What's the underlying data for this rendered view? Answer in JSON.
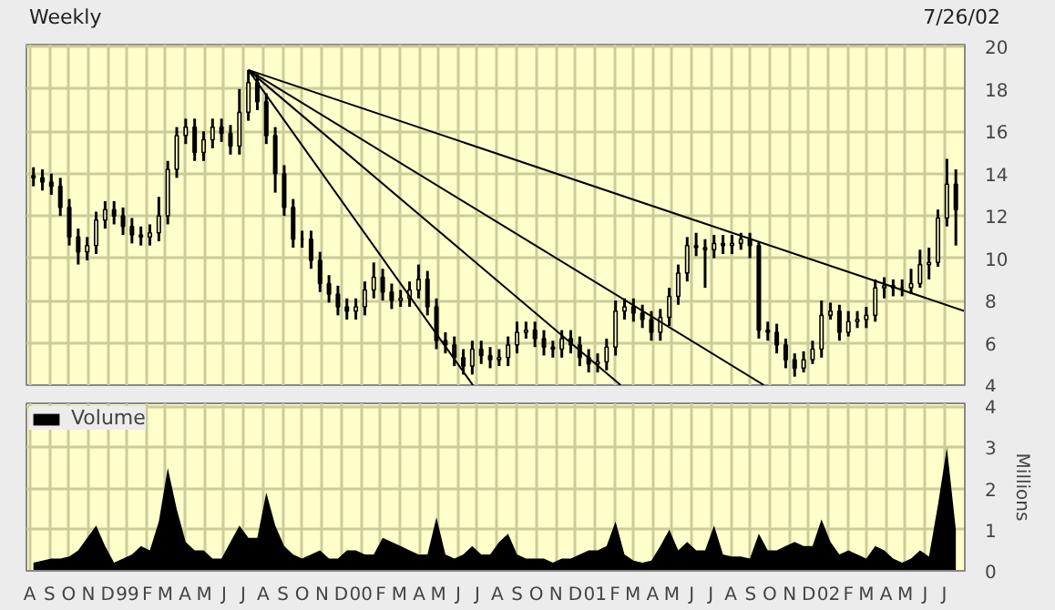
{
  "chart_data": [
    {
      "type": "candlestick",
      "title": "Weekly",
      "annotations": [
        "7/26/02"
      ],
      "xlim": [
        "1998-07-27",
        "2002-08-02"
      ],
      "ylim": [
        4,
        20.1
      ],
      "yticks": [
        4,
        6,
        8,
        10,
        12,
        14,
        16,
        18,
        20
      ],
      "tick_labels": "y",
      "grid": true,
      "xticks": [
        {
          "value": "1998-08-01",
          "label": null
        },
        {
          "value": "1998-09-01",
          "label": null
        },
        {
          "value": "1998-10-01",
          "label": null
        },
        {
          "value": "1998-11-01",
          "label": null
        },
        {
          "value": "1998-12-01",
          "label": null
        },
        {
          "value": "1999-01-01",
          "label": null
        },
        {
          "value": "1999-02-01",
          "label": null
        },
        {
          "value": "1999-03-01",
          "label": null
        },
        {
          "value": "1999-04-01",
          "label": null
        },
        {
          "value": "1999-05-01",
          "label": null
        },
        {
          "value": "1999-06-01",
          "label": null
        },
        {
          "value": "1999-07-01",
          "label": null
        },
        {
          "value": "1999-08-01",
          "label": null
        },
        {
          "value": "1999-09-01",
          "label": null
        },
        {
          "value": "1999-10-01",
          "label": null
        },
        {
          "value": "1999-11-01",
          "label": null
        },
        {
          "value": "1999-12-01",
          "label": null
        },
        {
          "value": "2000-01-01",
          "label": null
        },
        {
          "value": "2000-02-01",
          "label": null
        },
        {
          "value": "2000-03-01",
          "label": null
        },
        {
          "value": "2000-04-01",
          "label": null
        },
        {
          "value": "2000-05-01",
          "label": null
        },
        {
          "value": "2000-06-01",
          "label": null
        },
        {
          "value": "2000-07-01",
          "label": null
        },
        {
          "value": "2000-08-01",
          "label": null
        },
        {
          "value": "2000-09-01",
          "label": null
        },
        {
          "value": "2000-10-01",
          "label": null
        },
        {
          "value": "2000-11-01",
          "label": null
        },
        {
          "value": "2000-12-01",
          "label": null
        },
        {
          "value": "2001-01-01",
          "label": null
        },
        {
          "value": "2001-02-01",
          "label": null
        },
        {
          "value": "2001-03-01",
          "label": null
        },
        {
          "value": "2001-04-01",
          "label": null
        },
        {
          "value": "2001-05-01",
          "label": null
        },
        {
          "value": "2001-06-01",
          "label": null
        },
        {
          "value": "2001-07-01",
          "label": null
        },
        {
          "value": "2001-08-01",
          "label": null
        },
        {
          "value": "2001-09-01",
          "label": null
        },
        {
          "value": "2001-10-01",
          "label": null
        },
        {
          "value": "2001-11-01",
          "label": null
        },
        {
          "value": "2001-12-01",
          "label": null
        },
        {
          "value": "2002-01-01",
          "label": null
        },
        {
          "value": "2002-02-01",
          "label": null
        },
        {
          "value": "2002-03-01",
          "label": null
        },
        {
          "value": "2002-04-01",
          "label": null
        },
        {
          "value": "2002-05-01",
          "label": null
        },
        {
          "value": "2002-06-01",
          "label": null
        },
        {
          "value": "2002-07-01",
          "label": null
        }
      ],
      "x": [
        "1998-08-07",
        "1998-08-21",
        "1998-09-04",
        "1998-09-18",
        "1998-10-02",
        "1998-10-16",
        "1998-10-30",
        "1998-11-13",
        "1998-11-27",
        "1998-12-11",
        "1998-12-25",
        "1999-01-08",
        "1999-01-22",
        "1999-02-05",
        "1999-02-19",
        "1999-03-05",
        "1999-03-19",
        "1999-04-02",
        "1999-04-16",
        "1999-04-30",
        "1999-05-14",
        "1999-05-28",
        "1999-06-11",
        "1999-06-25",
        "1999-07-09",
        "1999-07-23",
        "1999-08-06",
        "1999-08-20",
        "1999-09-03",
        "1999-09-17",
        "1999-10-01",
        "1999-10-15",
        "1999-10-29",
        "1999-11-12",
        "1999-11-26",
        "1999-12-10",
        "1999-12-24",
        "2000-01-07",
        "2000-01-21",
        "2000-02-04",
        "2000-02-18",
        "2000-03-03",
        "2000-03-17",
        "2000-03-31",
        "2000-04-14",
        "2000-04-28",
        "2000-05-12",
        "2000-05-26",
        "2000-06-09",
        "2000-06-23",
        "2000-07-07",
        "2000-07-21",
        "2000-08-04",
        "2000-08-18",
        "2000-09-01",
        "2000-09-15",
        "2000-09-29",
        "2000-10-13",
        "2000-10-27",
        "2000-11-10",
        "2000-11-24",
        "2000-12-08",
        "2000-12-22",
        "2001-01-05",
        "2001-01-19",
        "2001-02-02",
        "2001-02-16",
        "2001-03-02",
        "2001-03-16",
        "2001-03-30",
        "2001-04-13",
        "2001-04-27",
        "2001-05-11",
        "2001-05-25",
        "2001-06-08",
        "2001-06-22",
        "2001-07-06",
        "2001-07-20",
        "2001-08-03",
        "2001-08-17",
        "2001-08-31",
        "2001-09-14",
        "2001-09-28",
        "2001-10-12",
        "2001-10-26",
        "2001-11-09",
        "2001-11-23",
        "2001-12-07",
        "2001-12-21",
        "2002-01-04",
        "2002-01-18",
        "2002-02-01",
        "2002-02-15",
        "2002-03-01",
        "2002-03-15",
        "2002-03-29",
        "2002-04-12",
        "2002-04-26",
        "2002-05-10",
        "2002-05-24",
        "2002-06-07",
        "2002-06-21",
        "2002-07-05",
        "2002-07-19"
      ],
      "color": "#000000",
      "ohlc": [
        [
          13.9,
          14.3,
          13.4,
          13.8
        ],
        [
          13.8,
          14.2,
          13.2,
          13.6
        ],
        [
          13.6,
          14.0,
          13.0,
          13.4
        ],
        [
          13.4,
          13.8,
          12.0,
          12.4
        ],
        [
          12.4,
          12.8,
          10.6,
          11.0
        ],
        [
          11.0,
          11.4,
          9.7,
          10.3
        ],
        [
          10.3,
          11.0,
          9.9,
          10.6
        ],
        [
          10.6,
          12.2,
          10.2,
          11.8
        ],
        [
          11.8,
          12.7,
          11.4,
          12.3
        ],
        [
          12.3,
          12.7,
          11.6,
          12.0
        ],
        [
          12.0,
          12.4,
          11.1,
          11.5
        ],
        [
          11.5,
          11.9,
          10.7,
          11.1
        ],
        [
          11.1,
          11.5,
          10.6,
          11.0
        ],
        [
          11.0,
          11.6,
          10.6,
          11.2
        ],
        [
          11.2,
          12.9,
          10.8,
          12.0
        ],
        [
          12.0,
          14.6,
          11.6,
          14.2
        ],
        [
          14.2,
          16.2,
          13.8,
          15.8
        ],
        [
          15.8,
          16.6,
          15.4,
          16.2
        ],
        [
          16.2,
          16.6,
          14.6,
          15.0
        ],
        [
          15.0,
          16.0,
          14.6,
          15.6
        ],
        [
          15.6,
          16.6,
          15.2,
          16.2
        ],
        [
          16.2,
          16.6,
          15.5,
          15.9
        ],
        [
          15.9,
          16.3,
          14.9,
          15.3
        ],
        [
          15.3,
          18.0,
          14.9,
          16.9
        ],
        [
          16.9,
          18.9,
          16.5,
          18.3
        ],
        [
          18.3,
          18.7,
          17.0,
          17.4
        ],
        [
          17.4,
          17.8,
          15.4,
          15.8
        ],
        [
          15.8,
          16.2,
          13.1,
          14.0
        ],
        [
          14.0,
          14.4,
          12.0,
          12.4
        ],
        [
          12.4,
          12.8,
          10.5,
          10.9
        ],
        [
          10.9,
          11.3,
          10.5,
          10.9
        ],
        [
          10.9,
          11.3,
          9.5,
          9.9
        ],
        [
          9.9,
          10.3,
          8.4,
          8.8
        ],
        [
          8.8,
          9.2,
          7.9,
          8.3
        ],
        [
          8.3,
          8.7,
          7.3,
          7.7
        ],
        [
          7.7,
          8.1,
          7.1,
          7.5
        ],
        [
          7.5,
          8.1,
          7.1,
          7.7
        ],
        [
          7.7,
          8.9,
          7.3,
          8.5
        ],
        [
          8.5,
          9.8,
          8.1,
          9.1
        ],
        [
          9.1,
          9.5,
          8.0,
          8.4
        ],
        [
          8.4,
          8.8,
          7.6,
          8.0
        ],
        [
          8.0,
          8.5,
          7.7,
          8.1
        ],
        [
          8.1,
          8.9,
          7.7,
          8.5
        ],
        [
          8.5,
          9.7,
          8.1,
          9.0
        ],
        [
          9.0,
          9.4,
          7.3,
          7.7
        ],
        [
          7.7,
          8.1,
          5.7,
          6.1
        ],
        [
          6.1,
          6.5,
          5.5,
          5.9
        ],
        [
          5.9,
          6.3,
          4.9,
          5.3
        ],
        [
          5.3,
          5.7,
          4.5,
          4.9
        ],
        [
          4.9,
          6.1,
          4.5,
          5.7
        ],
        [
          5.7,
          6.1,
          5.0,
          5.4
        ],
        [
          5.4,
          5.8,
          4.8,
          5.2
        ],
        [
          5.2,
          5.7,
          4.9,
          5.3
        ],
        [
          5.3,
          6.3,
          4.9,
          5.9
        ],
        [
          5.9,
          7.0,
          5.5,
          6.5
        ],
        [
          6.5,
          7.0,
          6.2,
          6.6
        ],
        [
          6.6,
          7.0,
          5.8,
          6.2
        ],
        [
          6.2,
          6.6,
          5.4,
          5.8
        ],
        [
          5.8,
          6.1,
          5.3,
          5.7
        ],
        [
          5.7,
          6.6,
          5.3,
          6.2
        ],
        [
          6.2,
          6.6,
          5.5,
          5.9
        ],
        [
          5.9,
          6.3,
          4.9,
          5.3
        ],
        [
          5.3,
          5.7,
          4.6,
          5.0
        ],
        [
          5.0,
          5.5,
          4.6,
          5.1
        ],
        [
          5.1,
          6.2,
          4.7,
          5.8
        ],
        [
          5.8,
          8.0,
          5.4,
          7.5
        ],
        [
          7.5,
          8.1,
          7.1,
          7.7
        ],
        [
          7.7,
          8.1,
          7.0,
          7.4
        ],
        [
          7.4,
          7.8,
          6.7,
          7.1
        ],
        [
          7.1,
          7.5,
          6.1,
          6.5
        ],
        [
          6.5,
          7.6,
          6.1,
          7.2
        ],
        [
          7.2,
          8.6,
          6.8,
          8.2
        ],
        [
          8.2,
          9.7,
          7.8,
          9.3
        ],
        [
          9.3,
          11.0,
          8.9,
          10.6
        ],
        [
          10.6,
          11.2,
          10.1,
          10.5
        ],
        [
          10.5,
          10.9,
          8.6,
          10.4
        ],
        [
          10.4,
          11.1,
          10.0,
          10.7
        ],
        [
          10.7,
          11.1,
          10.2,
          10.6
        ],
        [
          10.6,
          11.1,
          10.2,
          10.7
        ],
        [
          10.7,
          11.2,
          10.4,
          10.9
        ],
        [
          10.9,
          11.2,
          10.0,
          10.6
        ],
        [
          10.6,
          10.8,
          6.2,
          6.6
        ],
        [
          6.6,
          7.0,
          6.1,
          6.5
        ],
        [
          6.5,
          6.9,
          5.5,
          5.9
        ],
        [
          5.9,
          6.2,
          4.8,
          5.2
        ],
        [
          5.2,
          5.5,
          4.4,
          4.8
        ],
        [
          4.8,
          5.6,
          4.6,
          5.2
        ],
        [
          5.2,
          6.1,
          5.0,
          5.7
        ],
        [
          5.7,
          8.0,
          5.3,
          7.3
        ],
        [
          7.3,
          7.9,
          7.1,
          7.5
        ],
        [
          7.5,
          7.8,
          6.1,
          6.5
        ],
        [
          6.5,
          7.5,
          6.3,
          7.0
        ],
        [
          7.0,
          7.5,
          6.7,
          7.1
        ],
        [
          7.1,
          7.7,
          6.7,
          7.3
        ],
        [
          7.3,
          9.0,
          7.0,
          8.6
        ],
        [
          8.6,
          9.1,
          8.1,
          8.7
        ],
        [
          8.7,
          9.0,
          8.2,
          8.6
        ],
        [
          8.6,
          9.0,
          8.2,
          8.6
        ],
        [
          8.6,
          9.5,
          8.3,
          8.8
        ],
        [
          8.8,
          10.4,
          8.6,
          9.7
        ],
        [
          9.7,
          10.5,
          9.0,
          9.8
        ],
        [
          9.8,
          12.3,
          9.6,
          11.9
        ],
        [
          11.9,
          14.7,
          11.5,
          13.5
        ],
        [
          13.5,
          14.2,
          10.6,
          12.3
        ]
      ],
      "series": [
        {
          "type": "line",
          "color": "#000000",
          "x": [
            "1999-07-09",
            "2002-08-02"
          ],
          "values": [
            18.9,
            7.5
          ]
        },
        {
          "type": "line",
          "color": "#000000",
          "x": [
            "1999-07-09",
            "2001-09-22"
          ],
          "values": [
            18.9,
            4
          ]
        },
        {
          "type": "line",
          "color": "#000000",
          "x": [
            "1999-07-09",
            "2001-02-10"
          ],
          "values": [
            18.9,
            4
          ]
        },
        {
          "type": "line",
          "color": "#000000",
          "x": [
            "1999-07-09",
            "2000-06-24"
          ],
          "values": [
            18.9,
            4
          ]
        }
      ]
    },
    {
      "type": "area",
      "ylabel": "Millions",
      "xlim": [
        "1998-07-27",
        "2002-08-02"
      ],
      "ylim": [
        0,
        4.07
      ],
      "yticks": [
        0,
        1,
        2,
        3,
        4
      ],
      "grid": true,
      "legend": "top left",
      "xticks": [
        {
          "value": "1998-08-01",
          "label": "A"
        },
        {
          "value": "1998-09-01",
          "label": "S"
        },
        {
          "value": "1998-10-01",
          "label": "O"
        },
        {
          "value": "1998-11-01",
          "label": "N"
        },
        {
          "value": "1998-12-01",
          "label": "D"
        },
        {
          "value": "1999-01-01",
          "label": "99"
        },
        {
          "value": "1999-02-01",
          "label": "F"
        },
        {
          "value": "1999-03-01",
          "label": "M"
        },
        {
          "value": "1999-04-01",
          "label": "A"
        },
        {
          "value": "1999-05-01",
          "label": "M"
        },
        {
          "value": "1999-06-01",
          "label": "J"
        },
        {
          "value": "1999-07-01",
          "label": "J"
        },
        {
          "value": "1999-08-01",
          "label": "A"
        },
        {
          "value": "1999-09-01",
          "label": "S"
        },
        {
          "value": "1999-10-01",
          "label": "O"
        },
        {
          "value": "1999-11-01",
          "label": "N"
        },
        {
          "value": "1999-12-01",
          "label": "D"
        },
        {
          "value": "2000-01-01",
          "label": "00"
        },
        {
          "value": "2000-02-01",
          "label": "F"
        },
        {
          "value": "2000-03-01",
          "label": "M"
        },
        {
          "value": "2000-04-01",
          "label": "A"
        },
        {
          "value": "2000-05-01",
          "label": "M"
        },
        {
          "value": "2000-06-01",
          "label": "J"
        },
        {
          "value": "2000-07-01",
          "label": "J"
        },
        {
          "value": "2000-08-01",
          "label": "A"
        },
        {
          "value": "2000-09-01",
          "label": "S"
        },
        {
          "value": "2000-10-01",
          "label": "O"
        },
        {
          "value": "2000-11-01",
          "label": "N"
        },
        {
          "value": "2000-12-01",
          "label": "D"
        },
        {
          "value": "2001-01-01",
          "label": "01"
        },
        {
          "value": "2001-02-01",
          "label": "F"
        },
        {
          "value": "2001-03-01",
          "label": "M"
        },
        {
          "value": "2001-04-01",
          "label": "A"
        },
        {
          "value": "2001-05-01",
          "label": "M"
        },
        {
          "value": "2001-06-01",
          "label": "J"
        },
        {
          "value": "2001-07-01",
          "label": "J"
        },
        {
          "value": "2001-08-01",
          "label": "A"
        },
        {
          "value": "2001-09-01",
          "label": "S"
        },
        {
          "value": "2001-10-01",
          "label": "O"
        },
        {
          "value": "2001-11-01",
          "label": "N"
        },
        {
          "value": "2001-12-01",
          "label": "D"
        },
        {
          "value": "2002-01-01",
          "label": "02"
        },
        {
          "value": "2002-02-01",
          "label": "F"
        },
        {
          "value": "2002-03-01",
          "label": "M"
        },
        {
          "value": "2002-04-01",
          "label": "A"
        },
        {
          "value": "2002-05-01",
          "label": "M"
        },
        {
          "value": "2002-06-01",
          "label": "J"
        },
        {
          "value": "2002-07-01",
          "label": "J"
        }
      ],
      "x": [
        "1998-08-07",
        "1998-08-21",
        "1998-09-04",
        "1998-09-18",
        "1998-10-02",
        "1998-10-16",
        "1998-10-30",
        "1998-11-13",
        "1998-11-27",
        "1998-12-11",
        "1998-12-25",
        "1999-01-08",
        "1999-01-22",
        "1999-02-05",
        "1999-02-19",
        "1999-03-05",
        "1999-03-19",
        "1999-04-02",
        "1999-04-16",
        "1999-04-30",
        "1999-05-14",
        "1999-05-28",
        "1999-06-11",
        "1999-06-25",
        "1999-07-09",
        "1999-07-23",
        "1999-08-06",
        "1999-08-20",
        "1999-09-03",
        "1999-09-17",
        "1999-10-01",
        "1999-10-15",
        "1999-10-29",
        "1999-11-12",
        "1999-11-26",
        "1999-12-10",
        "1999-12-24",
        "2000-01-07",
        "2000-01-21",
        "2000-02-04",
        "2000-02-18",
        "2000-03-03",
        "2000-03-17",
        "2000-03-31",
        "2000-04-14",
        "2000-04-28",
        "2000-05-12",
        "2000-05-26",
        "2000-06-09",
        "2000-06-23",
        "2000-07-07",
        "2000-07-21",
        "2000-08-04",
        "2000-08-18",
        "2000-09-01",
        "2000-09-15",
        "2000-09-29",
        "2000-10-13",
        "2000-10-27",
        "2000-11-10",
        "2000-11-24",
        "2000-12-08",
        "2000-12-22",
        "2001-01-05",
        "2001-01-19",
        "2001-02-02",
        "2001-02-16",
        "2001-03-02",
        "2001-03-16",
        "2001-03-30",
        "2001-04-13",
        "2001-04-27",
        "2001-05-11",
        "2001-05-25",
        "2001-06-08",
        "2001-06-22",
        "2001-07-06",
        "2001-07-20",
        "2001-08-03",
        "2001-08-17",
        "2001-08-31",
        "2001-09-14",
        "2001-09-28",
        "2001-10-12",
        "2001-10-26",
        "2001-11-09",
        "2001-11-23",
        "2001-12-07",
        "2001-12-21",
        "2002-01-04",
        "2002-01-18",
        "2002-02-01",
        "2002-02-15",
        "2002-03-01",
        "2002-03-15",
        "2002-03-29",
        "2002-04-12",
        "2002-04-26",
        "2002-05-10",
        "2002-05-24",
        "2002-06-07",
        "2002-06-21",
        "2002-07-05",
        "2002-07-19"
      ],
      "series": [
        {
          "name": "Volume",
          "color": "#000000",
          "values": [
            0.2,
            0.25,
            0.3,
            0.3,
            0.35,
            0.5,
            0.8,
            1.1,
            0.6,
            0.2,
            0.3,
            0.4,
            0.6,
            0.5,
            1.2,
            2.5,
            1.5,
            0.7,
            0.5,
            0.5,
            0.3,
            0.3,
            0.7,
            1.1,
            0.8,
            0.8,
            1.9,
            1.1,
            0.6,
            0.4,
            0.3,
            0.4,
            0.5,
            0.3,
            0.3,
            0.5,
            0.5,
            0.4,
            0.4,
            0.8,
            0.7,
            0.6,
            0.5,
            0.4,
            0.4,
            1.3,
            0.4,
            0.3,
            0.4,
            0.6,
            0.4,
            0.4,
            0.7,
            0.9,
            0.4,
            0.3,
            0.3,
            0.3,
            0.2,
            0.3,
            0.3,
            0.4,
            0.5,
            0.5,
            0.6,
            1.2,
            0.4,
            0.25,
            0.2,
            0.25,
            0.6,
            1.0,
            0.5,
            0.7,
            0.5,
            0.5,
            1.1,
            0.4,
            0.35,
            0.35,
            0.3,
            0.9,
            0.5,
            0.5,
            0.6,
            0.7,
            0.6,
            0.6,
            1.25,
            0.7,
            0.4,
            0.5,
            0.4,
            0.3,
            0.6,
            0.5,
            0.3,
            0.2,
            0.3,
            0.5,
            0.35,
            1.6,
            3.0,
            1.0
          ]
        }
      ]
    }
  ]
}
